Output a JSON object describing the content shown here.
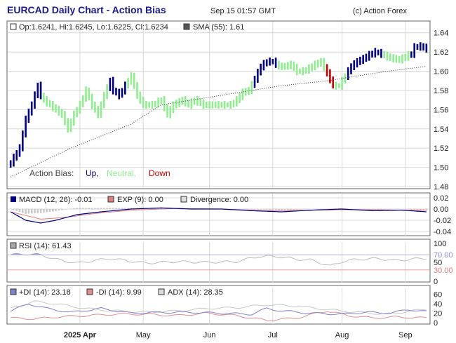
{
  "header": {
    "title": "EURCAD Daily Chart - Action Bias",
    "timestamp": "Sep 15 01:57 GMT",
    "copyright": "(c) Action Forex"
  },
  "colors": {
    "up": "#000080",
    "neutral": "#90ee90",
    "down": "#cc0000",
    "sma": "#333333",
    "macd": "#000080",
    "signal": "#e08080",
    "divergence": "#c8c8c8",
    "rsi": "#8a8ac8",
    "plus_di": "#8080d0",
    "minus_di": "#e09090",
    "adx": "#c8c8c8",
    "grid": "#d8d8d8",
    "frame": "#555555"
  },
  "price_panel": {
    "legend": {
      "ohlc": "Op:1.6241, Hi:1.6245, Lo:1.6225, Cl:1.6234",
      "sma": "SMA (55): 1.61"
    },
    "bias_legend": {
      "label": "Action Bias:",
      "up": "Up,",
      "neutral": "Neutral,",
      "down": "Down"
    }
  },
  "macd_panel": {
    "legend": {
      "macd": "MACD (12, 26): -0.01",
      "signal": "EXP (9): 0.00",
      "divergence": "Divergence: 0.00"
    }
  },
  "rsi_panel": {
    "legend": {
      "rsi": "RSI (14): 61.43"
    },
    "levels": [
      "70.00",
      "30.00"
    ]
  },
  "dmi_panel": {
    "legend": {
      "plus_di": "+DI (14): 23.18",
      "minus_di": "-DI (14): 9.99",
      "adx": "ADX (14): 28.35"
    }
  },
  "chart_data": {
    "type": "candlestick",
    "title": "EURCAD Daily Chart - Action Bias",
    "x_axis": {
      "labels": [
        {
          "text": "2025 Apr",
          "bar": 23
        },
        {
          "text": "May",
          "bar": 44
        },
        {
          "text": "Jun",
          "bar": 66
        },
        {
          "text": "Jul",
          "bar": 87
        },
        {
          "text": "Aug",
          "bar": 110
        },
        {
          "text": "Sep",
          "bar": 131
        }
      ]
    },
    "price_axis": {
      "ylim": [
        1.48,
        1.65
      ],
      "ticks": [
        "1.48",
        "1.50",
        "1.52",
        "1.54",
        "1.56",
        "1.58",
        "1.60",
        "1.62",
        "1.64"
      ]
    },
    "price_keypoints": [
      [
        0,
        1.505
      ],
      [
        3,
        1.52
      ],
      [
        5,
        1.55
      ],
      [
        7,
        1.565
      ],
      [
        9,
        1.585
      ],
      [
        10,
        1.575
      ],
      [
        11,
        1.57
      ],
      [
        13,
        1.565
      ],
      [
        15,
        1.56
      ],
      [
        17,
        1.555
      ],
      [
        19,
        1.54
      ],
      [
        21,
        1.555
      ],
      [
        23,
        1.565
      ],
      [
        25,
        1.58
      ],
      [
        27,
        1.565
      ],
      [
        29,
        1.555
      ],
      [
        31,
        1.575
      ],
      [
        33,
        1.59
      ],
      [
        34,
        1.58
      ],
      [
        36,
        1.575
      ],
      [
        38,
        1.585
      ],
      [
        40,
        1.595
      ],
      [
        42,
        1.575
      ],
      [
        44,
        1.565
      ],
      [
        47,
        1.565
      ],
      [
        50,
        1.57
      ],
      [
        52,
        1.555
      ],
      [
        54,
        1.565
      ],
      [
        57,
        1.57
      ],
      [
        59,
        1.565
      ],
      [
        61,
        1.57
      ],
      [
        64,
        1.565
      ],
      [
        67,
        1.565
      ],
      [
        70,
        1.565
      ],
      [
        73,
        1.565
      ],
      [
        75,
        1.57
      ],
      [
        77,
        1.578
      ],
      [
        79,
        1.58
      ],
      [
        81,
        1.592
      ],
      [
        83,
        1.605
      ],
      [
        85,
        1.61
      ],
      [
        87,
        1.61
      ],
      [
        89,
        1.605
      ],
      [
        91,
        1.605
      ],
      [
        93,
        1.607
      ],
      [
        95,
        1.6
      ],
      [
        97,
        1.6
      ],
      [
        99,
        1.603
      ],
      [
        101,
        1.607
      ],
      [
        103,
        1.61
      ],
      [
        105,
        1.598
      ],
      [
        107,
        1.585
      ],
      [
        109,
        1.585
      ],
      [
        111,
        1.595
      ],
      [
        113,
        1.605
      ],
      [
        115,
        1.61
      ],
      [
        117,
        1.613
      ],
      [
        119,
        1.617
      ],
      [
        121,
        1.62
      ],
      [
        123,
        1.618
      ],
      [
        125,
        1.615
      ],
      [
        127,
        1.613
      ],
      [
        129,
        1.612
      ],
      [
        131,
        1.615
      ],
      [
        133,
        1.618
      ],
      [
        134,
        1.625
      ],
      [
        136,
        1.626
      ],
      [
        138,
        1.6234
      ]
    ],
    "bias_ranges": [
      {
        "from": 0,
        "to": 10,
        "bias": "up"
      },
      {
        "from": 11,
        "to": 18,
        "bias": "neutral"
      },
      {
        "from": 19,
        "to": 23,
        "bias": "neutral"
      },
      {
        "from": 24,
        "to": 32,
        "bias": "neutral"
      },
      {
        "from": 33,
        "to": 38,
        "bias": "up"
      },
      {
        "from": 39,
        "to": 41,
        "bias": "neutral"
      },
      {
        "from": 42,
        "to": 80,
        "bias": "neutral"
      },
      {
        "from": 81,
        "to": 88,
        "bias": "up"
      },
      {
        "from": 89,
        "to": 104,
        "bias": "neutral"
      },
      {
        "from": 105,
        "to": 107,
        "bias": "down"
      },
      {
        "from": 108,
        "to": 111,
        "bias": "neutral"
      },
      {
        "from": 112,
        "to": 123,
        "bias": "up"
      },
      {
        "from": 124,
        "to": 132,
        "bias": "neutral"
      },
      {
        "from": 133,
        "to": 138,
        "bias": "up"
      }
    ],
    "sma_keypoints": [
      [
        0,
        1.49
      ],
      [
        20,
        1.52
      ],
      [
        40,
        1.545
      ],
      [
        50,
        1.565
      ],
      [
        70,
        1.575
      ],
      [
        90,
        1.585
      ],
      [
        105,
        1.59
      ],
      [
        115,
        1.595
      ],
      [
        125,
        1.6
      ],
      [
        138,
        1.605
      ]
    ],
    "macd_axis": {
      "ylim": [
        -0.045,
        0.025
      ],
      "ticks": [
        "0.02",
        "0.00",
        "-0.02",
        "-0.04"
      ]
    },
    "macd_keypoints": [
      [
        0,
        -0.005
      ],
      [
        5,
        -0.02
      ],
      [
        10,
        -0.025
      ],
      [
        15,
        -0.02
      ],
      [
        22,
        -0.01
      ],
      [
        30,
        -0.005
      ],
      [
        40,
        0.0
      ],
      [
        50,
        0.002
      ],
      [
        60,
        0.0
      ],
      [
        70,
        0.0
      ],
      [
        80,
        -0.003
      ],
      [
        90,
        -0.005
      ],
      [
        100,
        -0.002
      ],
      [
        110,
        0.0
      ],
      [
        120,
        -0.003
      ],
      [
        130,
        -0.002
      ],
      [
        138,
        -0.005
      ]
    ],
    "signal_keypoints": [
      [
        0,
        -0.005
      ],
      [
        10,
        -0.018
      ],
      [
        18,
        -0.015
      ],
      [
        28,
        -0.008
      ],
      [
        40,
        -0.002
      ],
      [
        55,
        0.001
      ],
      [
        70,
        0.0
      ],
      [
        85,
        -0.003
      ],
      [
        100,
        -0.002
      ],
      [
        115,
        -0.001
      ],
      [
        130,
        -0.002
      ],
      [
        138,
        -0.002
      ]
    ],
    "rsi_axis": {
      "ylim": [
        0,
        100
      ],
      "ticks": [
        "100",
        "70.00",
        "50",
        "30.00",
        "0"
      ]
    },
    "rsi_keypoints": [
      [
        0,
        70
      ],
      [
        5,
        72
      ],
      [
        10,
        70
      ],
      [
        15,
        58
      ],
      [
        22,
        48
      ],
      [
        28,
        55
      ],
      [
        33,
        60
      ],
      [
        38,
        55
      ],
      [
        45,
        48
      ],
      [
        55,
        52
      ],
      [
        65,
        50
      ],
      [
        75,
        52
      ],
      [
        82,
        65
      ],
      [
        88,
        66
      ],
      [
        95,
        58
      ],
      [
        100,
        56
      ],
      [
        106,
        40
      ],
      [
        110,
        52
      ],
      [
        115,
        58
      ],
      [
        122,
        60
      ],
      [
        128,
        55
      ],
      [
        133,
        58
      ],
      [
        138,
        61.43
      ]
    ],
    "dmi_axis": {
      "ylim": [
        0,
        70
      ],
      "ticks": [
        "60",
        "40",
        "20",
        "0"
      ]
    },
    "plus_di_keypoints": [
      [
        0,
        25
      ],
      [
        6,
        40
      ],
      [
        12,
        30
      ],
      [
        20,
        22
      ],
      [
        30,
        30
      ],
      [
        40,
        20
      ],
      [
        50,
        22
      ],
      [
        60,
        22
      ],
      [
        70,
        20
      ],
      [
        80,
        18
      ],
      [
        85,
        30
      ],
      [
        90,
        25
      ],
      [
        100,
        20
      ],
      [
        110,
        18
      ],
      [
        118,
        22
      ],
      [
        126,
        20
      ],
      [
        132,
        28
      ],
      [
        138,
        23.18
      ]
    ],
    "minus_di_keypoints": [
      [
        0,
        10
      ],
      [
        8,
        8
      ],
      [
        15,
        12
      ],
      [
        25,
        15
      ],
      [
        35,
        18
      ],
      [
        45,
        18
      ],
      [
        55,
        15
      ],
      [
        65,
        20
      ],
      [
        75,
        15
      ],
      [
        85,
        5
      ],
      [
        95,
        10
      ],
      [
        105,
        25
      ],
      [
        112,
        15
      ],
      [
        120,
        10
      ],
      [
        128,
        12
      ],
      [
        138,
        9.99
      ]
    ],
    "adx_keypoints": [
      [
        0,
        30
      ],
      [
        8,
        45
      ],
      [
        15,
        40
      ],
      [
        25,
        30
      ],
      [
        35,
        25
      ],
      [
        45,
        22
      ],
      [
        55,
        25
      ],
      [
        65,
        30
      ],
      [
        75,
        32
      ],
      [
        85,
        38
      ],
      [
        95,
        35
      ],
      [
        105,
        28
      ],
      [
        115,
        22
      ],
      [
        125,
        18
      ],
      [
        133,
        25
      ],
      [
        138,
        28.35
      ]
    ]
  }
}
